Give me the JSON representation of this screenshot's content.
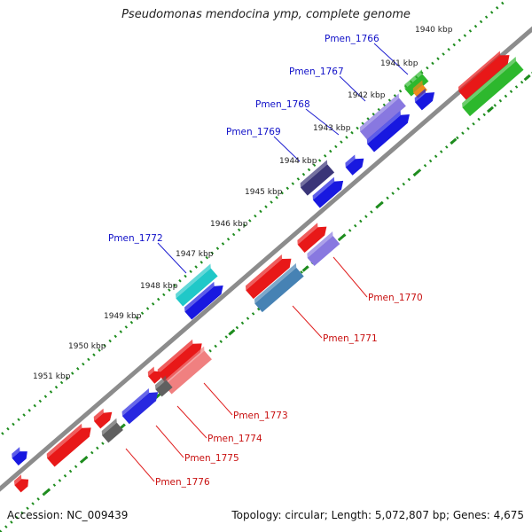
{
  "title": "Pseudomonas mendocina ymp, complete genome",
  "footer": {
    "accession": "Accession: NC_009439",
    "topology": "Topology: circular; Length: 5,072,807 bp; Genes: 4,675"
  },
  "colors": {
    "backbone": "#8c8c8c",
    "tick_dots": "#1e8c1e",
    "label_blue": "#1010c8",
    "label_red": "#c81010",
    "leader_blue": "#2020d0",
    "leader_red": "#e02020"
  },
  "kbp_labels": [
    "1940 kbp",
    "1941 kbp",
    "1942 kbp",
    "1943 kbp",
    "1944 kbp",
    "1945 kbp",
    "1946 kbp",
    "1947 kbp",
    "1948 kbp",
    "1949 kbp",
    "1950 kbp",
    "1951 kbp"
  ],
  "genes_top": [
    {
      "name": "Pmen_1766",
      "color": "#2db82d"
    },
    {
      "name": "Pmen_1767",
      "color": "#8878e0"
    },
    {
      "name": "Pmen_1768",
      "color": "#8878e0"
    },
    {
      "name": "Pmen_1769",
      "color": "#3a3578"
    },
    {
      "name": "Pmen_1772",
      "color": "#20c8c8"
    }
  ],
  "genes_bottom": [
    {
      "name": "Pmen_1770",
      "color": "#8878e0"
    },
    {
      "name": "Pmen_1771",
      "color": "#4682b4"
    },
    {
      "name": "Pmen_1773",
      "color": "#f08080"
    },
    {
      "name": "Pmen_1774",
      "color": "#606060"
    },
    {
      "name": "Pmen_1775",
      "color": "#2828e0"
    },
    {
      "name": "Pmen_1776",
      "color": "#606060"
    }
  ]
}
